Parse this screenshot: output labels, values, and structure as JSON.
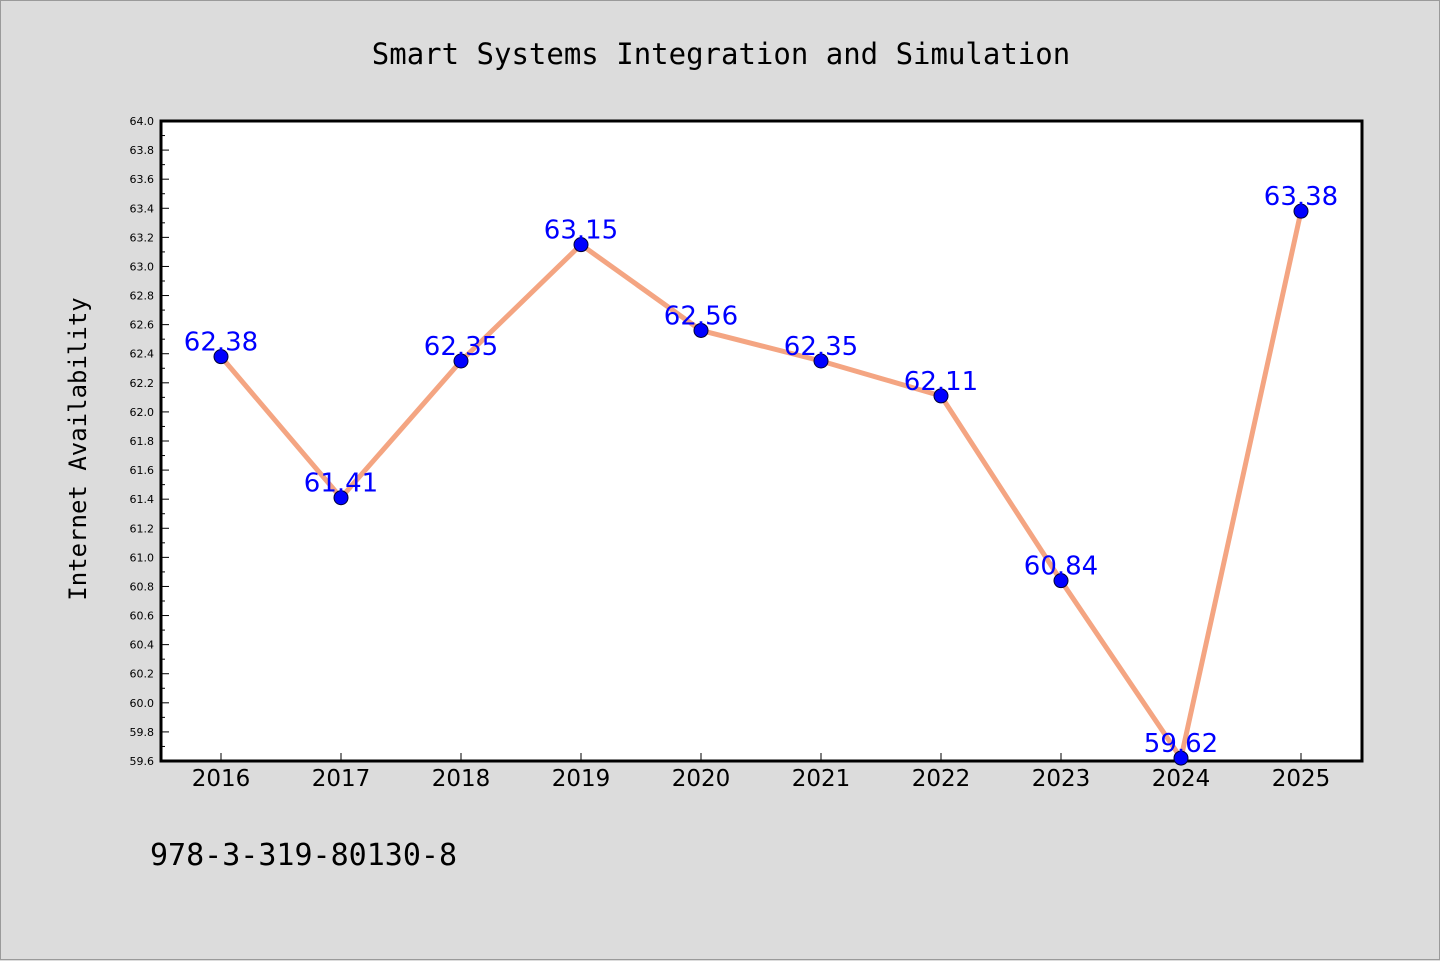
{
  "chart_data": {
    "type": "line",
    "title": "Smart Systems Integration and Simulation",
    "xlabel": "",
    "ylabel": "Internet Availability",
    "categories": [
      "2016",
      "2017",
      "2018",
      "2019",
      "2020",
      "2021",
      "2022",
      "2023",
      "2024",
      "2025"
    ],
    "values": [
      62.38,
      61.41,
      62.35,
      63.15,
      62.56,
      62.35,
      62.11,
      60.84,
      59.62,
      63.38
    ],
    "data_labels": [
      "62.38",
      "61.41",
      "62.35",
      "63.15",
      "62.56",
      "62.35",
      "62.11",
      "60.84",
      "59.62",
      "63.38"
    ],
    "ylim": [
      59.6,
      64.0
    ],
    "yticks": [
      "59.6",
      "59.8",
      "60.0",
      "60.2",
      "60.4",
      "60.6",
      "60.8",
      "61.0",
      "61.2",
      "61.4",
      "61.6",
      "61.8",
      "62.0",
      "62.2",
      "62.4",
      "62.6",
      "62.8",
      "63.0",
      "63.2",
      "63.4",
      "63.6",
      "63.8",
      "64.0"
    ],
    "grid": false,
    "legend": "none",
    "colors": {
      "line": "#f4a582",
      "marker": "#0000ff",
      "data_label": "#0000ff",
      "background": "#dcdcdc",
      "plot_background": "#ffffff"
    }
  },
  "footer": {
    "isbn": "978-3-319-80130-8"
  }
}
